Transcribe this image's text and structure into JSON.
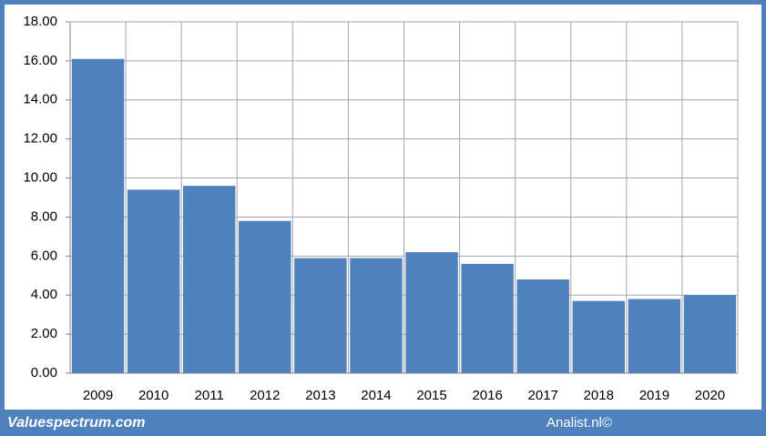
{
  "chart_data": {
    "type": "bar",
    "categories": [
      "2009",
      "2010",
      "2011",
      "2012",
      "2013",
      "2014",
      "2015",
      "2016",
      "2017",
      "2018",
      "2019",
      "2020"
    ],
    "values": [
      16.1,
      9.4,
      9.6,
      7.8,
      5.9,
      5.9,
      6.2,
      5.6,
      4.8,
      3.7,
      3.8,
      4.0
    ],
    "color": "#4f81bd",
    "ylim": [
      0,
      18
    ],
    "yticks": [
      {
        "value": 0,
        "label": "0.00"
      },
      {
        "value": 2,
        "label": "2.00"
      },
      {
        "value": 4,
        "label": "4.00"
      },
      {
        "value": 6,
        "label": "6.00"
      },
      {
        "value": 8,
        "label": "8.00"
      },
      {
        "value": 10,
        "label": "10.00"
      },
      {
        "value": 12,
        "label": "12.00"
      },
      {
        "value": 14,
        "label": "14.00"
      },
      {
        "value": 16,
        "label": "16.00"
      },
      {
        "value": 18,
        "label": "18.00"
      }
    ],
    "grid": true
  },
  "footer": {
    "left": "Valuespectrum.com",
    "right": "Analist.nl©"
  }
}
